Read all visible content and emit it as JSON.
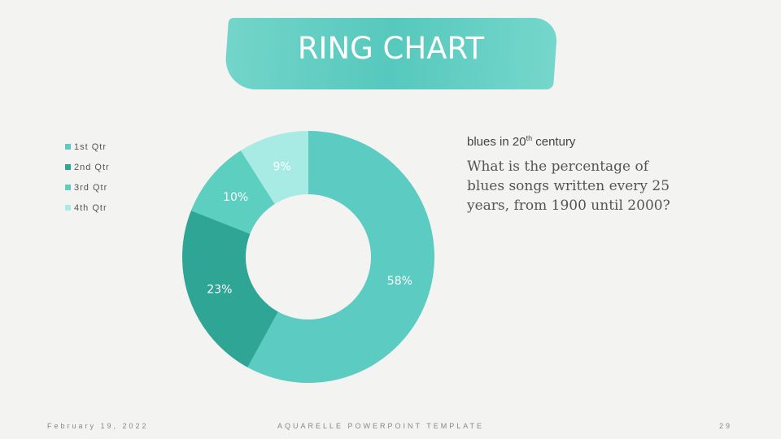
{
  "title": "RING CHART",
  "subtitle": {
    "text": "blues in 20",
    "sup": "th",
    "rest": " century"
  },
  "question": "What is the percentage of blues songs written every 25 years, from 1900 until 2000?",
  "footer": {
    "date": "February 19, 2022",
    "center": "AQUARELLE POWERPOINT TEMPLATE",
    "page": "29"
  },
  "chart_data": {
    "type": "pie",
    "variant": "donut",
    "categories": [
      "1st Qtr",
      "2nd Qtr",
      "3rd Qtr",
      "4th Qtr"
    ],
    "values": [
      58,
      23,
      10,
      9
    ],
    "labels": [
      "58%",
      "23%",
      "10%",
      "9%"
    ],
    "colors": [
      "#5ccbc1",
      "#2fa596",
      "#5ccfc0",
      "#a8ebe4"
    ],
    "legend": "left"
  }
}
